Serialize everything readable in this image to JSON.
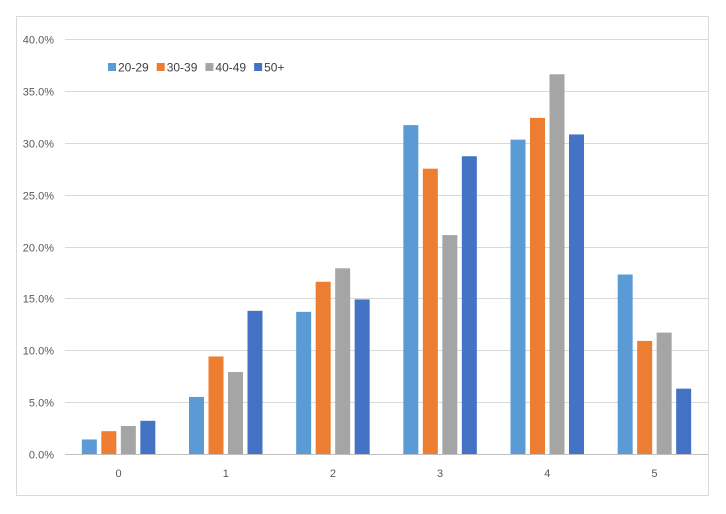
{
  "chart_data": {
    "type": "bar",
    "title": "",
    "xlabel": "",
    "ylabel": "",
    "categories": [
      "0",
      "1",
      "2",
      "3",
      "4",
      "5"
    ],
    "ylim": [
      0,
      0.4
    ],
    "yticks": [
      0,
      0.05,
      0.1,
      0.15,
      0.2,
      0.25,
      0.3,
      0.35,
      0.4
    ],
    "ytick_labels": [
      "0.0%",
      "5.0%",
      "10.0%",
      "15.0%",
      "20.0%",
      "25.0%",
      "30.0%",
      "35.0%",
      "40.0%"
    ],
    "grid": true,
    "legend_position": "top-left",
    "series": [
      {
        "name": "20-29",
        "color": "#5B9BD5",
        "values": [
          0.014,
          0.055,
          0.137,
          0.317,
          0.303,
          0.173
        ]
      },
      {
        "name": "30-39",
        "color": "#ED7D31",
        "values": [
          0.022,
          0.094,
          0.166,
          0.275,
          0.324,
          0.109
        ]
      },
      {
        "name": "40-49",
        "color": "#A5A5A5",
        "values": [
          0.027,
          0.079,
          0.179,
          0.211,
          0.366,
          0.117
        ]
      },
      {
        "name": "50+",
        "color": "#4472C4",
        "values": [
          0.032,
          0.138,
          0.149,
          0.287,
          0.308,
          0.063
        ]
      }
    ]
  }
}
